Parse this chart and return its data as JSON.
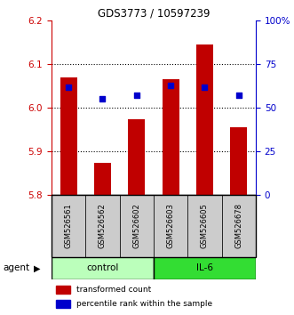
{
  "title": "GDS3773 / 10597239",
  "samples": [
    "GSM526561",
    "GSM526562",
    "GSM526602",
    "GSM526603",
    "GSM526605",
    "GSM526678"
  ],
  "bar_values": [
    6.07,
    5.875,
    5.975,
    6.065,
    6.145,
    5.955
  ],
  "dot_values": [
    62,
    55,
    57,
    63,
    62,
    57
  ],
  "ylim_left": [
    5.8,
    6.2
  ],
  "ylim_right": [
    0,
    100
  ],
  "yticks_left": [
    5.8,
    5.9,
    6.0,
    6.1,
    6.2
  ],
  "yticks_right": [
    0,
    25,
    50,
    75,
    100
  ],
  "ytick_labels_right": [
    "0",
    "25",
    "50",
    "75",
    "100%"
  ],
  "grid_lines": [
    5.9,
    6.0,
    6.1
  ],
  "bar_color": "#c00000",
  "dot_color": "#0000cc",
  "control_color": "#bbffbb",
  "il6_color": "#33dd33",
  "label_bg_color": "#cccccc",
  "legend_bar": "transformed count",
  "legend_dot": "percentile rank within the sample",
  "group_labels": [
    "control",
    "IL-6"
  ],
  "left_axis_color": "#cc0000",
  "right_axis_color": "#0000cc",
  "bar_width": 0.5
}
